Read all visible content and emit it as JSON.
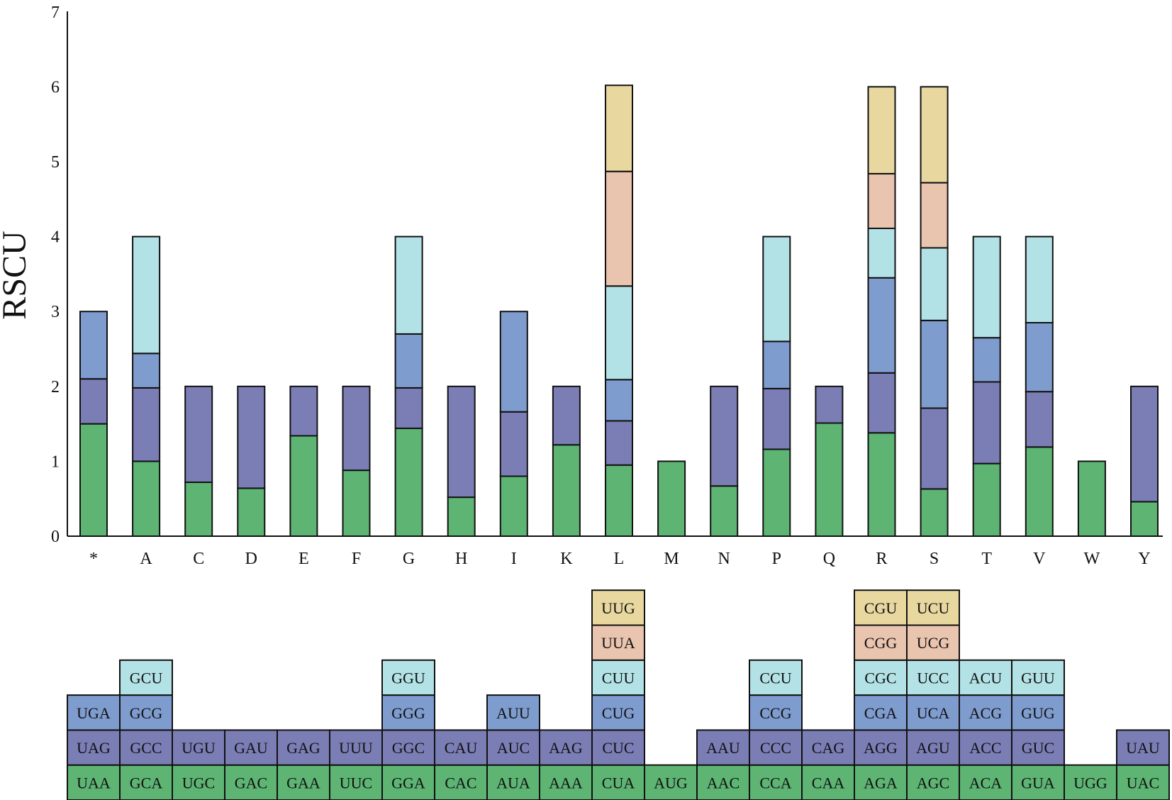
{
  "chart_data": {
    "type": "bar",
    "stacked": true,
    "ylabel": "RSCU",
    "xlabel": "",
    "ylim": [
      0,
      7
    ],
    "yticks": [
      0,
      1,
      2,
      3,
      4,
      5,
      6,
      7
    ],
    "grid": false,
    "legend": "codon table below chart",
    "colors": [
      "#5db473",
      "#7b7db5",
      "#7f9ccf",
      "#b3e2e6",
      "#e9c4ae",
      "#e8d89f"
    ],
    "categories": [
      "*",
      "A",
      "C",
      "D",
      "E",
      "F",
      "G",
      "H",
      "I",
      "K",
      "L",
      "M",
      "N",
      "P",
      "Q",
      "R",
      "S",
      "T",
      "V",
      "W",
      "Y"
    ],
    "stacks": [
      {
        "aa": "*",
        "segments": [
          {
            "codon": "UAA",
            "value": 1.5
          },
          {
            "codon": "UAG",
            "value": 0.6
          },
          {
            "codon": "UGA",
            "value": 0.9
          }
        ]
      },
      {
        "aa": "A",
        "segments": [
          {
            "codon": "GCA",
            "value": 1.0
          },
          {
            "codon": "GCC",
            "value": 0.98
          },
          {
            "codon": "GCG",
            "value": 0.46
          },
          {
            "codon": "GCU",
            "value": 1.56
          }
        ]
      },
      {
        "aa": "C",
        "segments": [
          {
            "codon": "UGC",
            "value": 0.72
          },
          {
            "codon": "UGU",
            "value": 1.28
          }
        ]
      },
      {
        "aa": "D",
        "segments": [
          {
            "codon": "GAC",
            "value": 0.64
          },
          {
            "codon": "GAU",
            "value": 1.36
          }
        ]
      },
      {
        "aa": "E",
        "segments": [
          {
            "codon": "GAA",
            "value": 1.34
          },
          {
            "codon": "GAG",
            "value": 0.66
          }
        ]
      },
      {
        "aa": "F",
        "segments": [
          {
            "codon": "UUC",
            "value": 0.88
          },
          {
            "codon": "UUU",
            "value": 1.12
          }
        ]
      },
      {
        "aa": "G",
        "segments": [
          {
            "codon": "GGA",
            "value": 1.44
          },
          {
            "codon": "GGC",
            "value": 0.54
          },
          {
            "codon": "GGG",
            "value": 0.72
          },
          {
            "codon": "GGU",
            "value": 1.3
          }
        ]
      },
      {
        "aa": "H",
        "segments": [
          {
            "codon": "CAC",
            "value": 0.52
          },
          {
            "codon": "CAU",
            "value": 1.48
          }
        ]
      },
      {
        "aa": "I",
        "segments": [
          {
            "codon": "AUA",
            "value": 0.8
          },
          {
            "codon": "AUC",
            "value": 0.86
          },
          {
            "codon": "AUU",
            "value": 1.34
          }
        ]
      },
      {
        "aa": "K",
        "segments": [
          {
            "codon": "AAA",
            "value": 1.22
          },
          {
            "codon": "AAG",
            "value": 0.78
          }
        ]
      },
      {
        "aa": "L",
        "segments": [
          {
            "codon": "CUA",
            "value": 0.95
          },
          {
            "codon": "CUC",
            "value": 0.59
          },
          {
            "codon": "CUG",
            "value": 0.55
          },
          {
            "codon": "CUU",
            "value": 1.25
          },
          {
            "codon": "UUA",
            "value": 1.53
          },
          {
            "codon": "UUG",
            "value": 1.15
          }
        ]
      },
      {
        "aa": "M",
        "segments": [
          {
            "codon": "AUG",
            "value": 1.0
          }
        ]
      },
      {
        "aa": "N",
        "segments": [
          {
            "codon": "AAC",
            "value": 0.67
          },
          {
            "codon": "AAU",
            "value": 1.33
          }
        ]
      },
      {
        "aa": "P",
        "segments": [
          {
            "codon": "CCA",
            "value": 1.16
          },
          {
            "codon": "CCC",
            "value": 0.81
          },
          {
            "codon": "CCG",
            "value": 0.63
          },
          {
            "codon": "CCU",
            "value": 1.4
          }
        ]
      },
      {
        "aa": "Q",
        "segments": [
          {
            "codon": "CAA",
            "value": 1.51
          },
          {
            "codon": "CAG",
            "value": 0.49
          }
        ]
      },
      {
        "aa": "R",
        "segments": [
          {
            "codon": "AGA",
            "value": 1.38
          },
          {
            "codon": "AGG",
            "value": 0.8
          },
          {
            "codon": "CGA",
            "value": 1.27
          },
          {
            "codon": "CGC",
            "value": 0.66
          },
          {
            "codon": "CGG",
            "value": 0.73
          },
          {
            "codon": "CGU",
            "value": 1.16
          }
        ]
      },
      {
        "aa": "S",
        "segments": [
          {
            "codon": "AGC",
            "value": 0.63
          },
          {
            "codon": "AGU",
            "value": 1.08
          },
          {
            "codon": "UCA",
            "value": 1.17
          },
          {
            "codon": "UCC",
            "value": 0.97
          },
          {
            "codon": "UCG",
            "value": 0.87
          },
          {
            "codon": "UCU",
            "value": 1.28
          }
        ]
      },
      {
        "aa": "T",
        "segments": [
          {
            "codon": "ACA",
            "value": 0.97
          },
          {
            "codon": "ACC",
            "value": 1.09
          },
          {
            "codon": "ACG",
            "value": 0.59
          },
          {
            "codon": "ACU",
            "value": 1.35
          }
        ]
      },
      {
        "aa": "V",
        "segments": [
          {
            "codon": "GUA",
            "value": 1.19
          },
          {
            "codon": "GUC",
            "value": 0.74
          },
          {
            "codon": "GUG",
            "value": 0.92
          },
          {
            "codon": "GUU",
            "value": 1.15
          }
        ]
      },
      {
        "aa": "W",
        "segments": [
          {
            "codon": "UGG",
            "value": 1.0
          }
        ]
      },
      {
        "aa": "Y",
        "segments": [
          {
            "codon": "UAC",
            "value": 0.46
          },
          {
            "codon": "UAU",
            "value": 1.54
          }
        ]
      }
    ]
  }
}
